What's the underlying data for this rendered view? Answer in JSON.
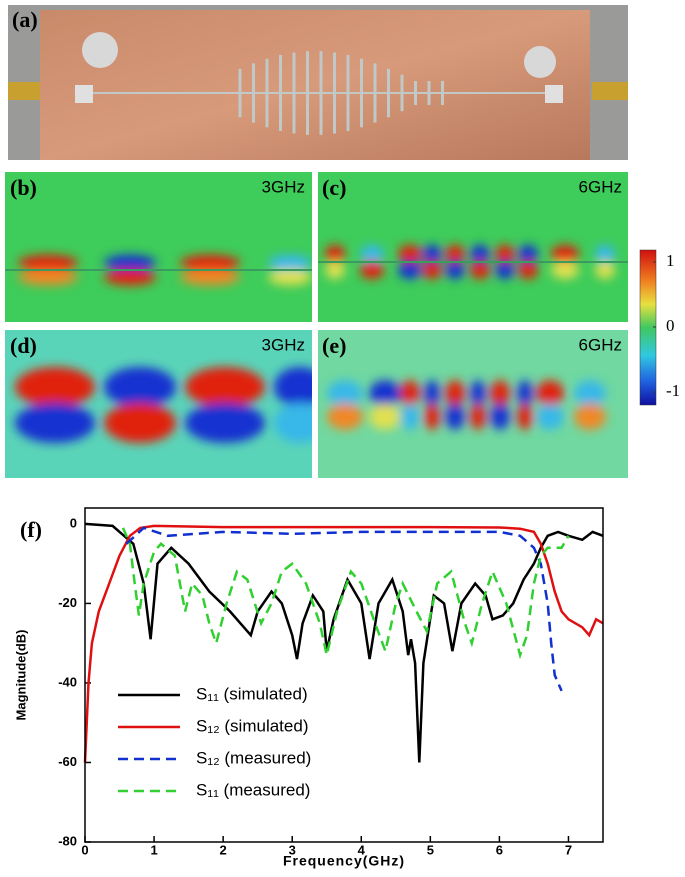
{
  "panels": [
    {
      "label": "(a)"
    },
    {
      "label": "(b)",
      "frequency": "3GHz"
    },
    {
      "label": "(c)",
      "frequency": "6GHz"
    },
    {
      "label": "(d)",
      "frequency": "3GHz"
    },
    {
      "label": "(e)",
      "frequency": "6GHz"
    }
  ],
  "colorbar": {
    "ticks": [
      1,
      0,
      -1
    ]
  },
  "chart_data": {
    "type": "line",
    "panel_label": "(f)",
    "x_label": "Frequency(GHz)",
    "y_label": "Magnitude(dB)",
    "xlim": [
      0,
      7.5
    ],
    "ylim": [
      -80,
      4
    ],
    "xticks": [
      0,
      1,
      2,
      3,
      4,
      5,
      6,
      7
    ],
    "yticks": [
      0,
      -20,
      -40,
      -60,
      -80
    ],
    "grid": false,
    "series": [
      {
        "name": "S₁₁ (simulated)",
        "color": "#000000",
        "dash": "solid",
        "x": [
          0,
          0.4,
          0.7,
          0.85,
          0.95,
          1.05,
          1.25,
          1.5,
          1.8,
          2.1,
          2.3,
          2.4,
          2.5,
          2.7,
          2.85,
          3.0,
          3.07,
          3.15,
          3.3,
          3.45,
          3.5,
          3.6,
          3.8,
          4.0,
          4.12,
          4.25,
          4.45,
          4.6,
          4.68,
          4.72,
          4.78,
          4.84,
          4.9,
          5.05,
          5.2,
          5.32,
          5.45,
          5.65,
          5.8,
          5.9,
          6.05,
          6.2,
          6.35,
          6.5,
          6.6,
          6.7,
          6.85,
          7.0,
          7.2,
          7.35,
          7.5
        ],
        "values": [
          0,
          -0.5,
          -5,
          -15,
          -29,
          -10,
          -6,
          -10,
          -17,
          -22,
          -26,
          -28,
          -22,
          -17,
          -20,
          -28,
          -34,
          -25,
          -18,
          -22,
          -32,
          -24,
          -14,
          -20,
          -34,
          -20,
          -14,
          -22,
          -33,
          -29,
          -35,
          -60,
          -35,
          -18,
          -20,
          -32,
          -20,
          -15,
          -18,
          -24,
          -23,
          -20,
          -14,
          -10,
          -6,
          -3,
          -2,
          -3,
          -4,
          -2,
          -3
        ]
      },
      {
        "name": "S₁₂ (simulated)",
        "color": "#e01010",
        "dash": "solid",
        "x": [
          0,
          0.05,
          0.1,
          0.2,
          0.35,
          0.5,
          0.65,
          0.8,
          1.0,
          2.0,
          3.0,
          4.0,
          5.0,
          6.0,
          6.3,
          6.5,
          6.6,
          6.7,
          6.8,
          6.9,
          7.0,
          7.2,
          7.3,
          7.4,
          7.5
        ],
        "values": [
          -60,
          -40,
          -30,
          -22,
          -15,
          -8,
          -3,
          -1,
          -0.5,
          -0.8,
          -0.8,
          -0.8,
          -0.8,
          -0.9,
          -1.2,
          -2,
          -5,
          -10,
          -17,
          -22,
          -24,
          -26,
          -28,
          -24,
          -25
        ]
      },
      {
        "name": "S₁₂ (measured)",
        "color": "#1030d0",
        "dash": "dashed",
        "x": [
          0.6,
          0.85,
          1.2,
          2.0,
          3.0,
          4.0,
          5.0,
          6.0,
          6.3,
          6.5,
          6.6,
          6.7,
          6.75,
          6.8,
          6.9
        ],
        "values": [
          -5,
          -1,
          -3,
          -2,
          -2.5,
          -2,
          -2,
          -2,
          -3,
          -6,
          -10,
          -20,
          -30,
          -38,
          -42
        ]
      },
      {
        "name": "S₁₁ (measured)",
        "color": "#30d030",
        "dash": "dashed",
        "x": [
          0.55,
          0.65,
          0.72,
          0.78,
          0.85,
          1.0,
          1.1,
          1.3,
          1.45,
          1.55,
          1.7,
          1.8,
          1.9,
          2.05,
          2.2,
          2.35,
          2.55,
          2.7,
          2.85,
          3.0,
          3.2,
          3.4,
          3.5,
          3.65,
          3.85,
          4.0,
          4.2,
          4.35,
          4.5,
          4.6,
          4.8,
          4.95,
          5.1,
          5.3,
          5.5,
          5.6,
          5.75,
          5.9,
          6.1,
          6.3,
          6.4,
          6.5,
          6.6,
          6.7,
          6.9,
          7.0
        ],
        "values": [
          -1,
          -5,
          -15,
          -23,
          -15,
          -7,
          -5,
          -8,
          -22,
          -15,
          -18,
          -25,
          -30,
          -20,
          -12,
          -14,
          -25,
          -20,
          -12,
          -10,
          -15,
          -25,
          -33,
          -22,
          -12,
          -15,
          -25,
          -32,
          -20,
          -15,
          -22,
          -27,
          -15,
          -12,
          -25,
          -30,
          -20,
          -12,
          -20,
          -33,
          -28,
          -15,
          -8,
          -6,
          -6,
          -3
        ]
      }
    ]
  }
}
